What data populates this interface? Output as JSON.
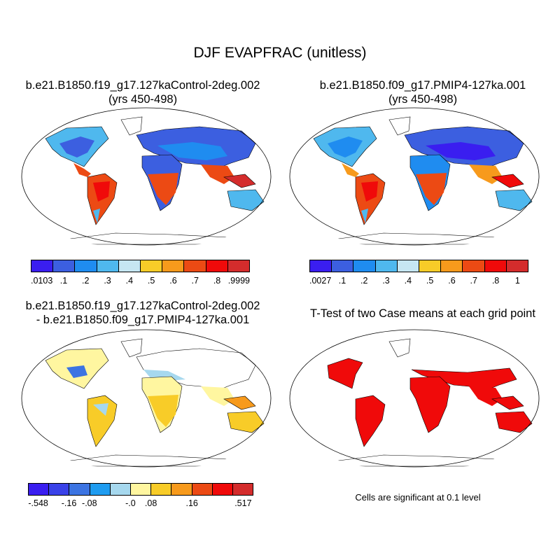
{
  "figure": {
    "title": "DJF EVAPFRAC (unitless)",
    "note": "Cells are significant at 0.1 level"
  },
  "panels": [
    {
      "id": "control",
      "title_line1": "b.e21.B1850.f19_g17.127kaControl-2deg.002",
      "title_line2": "(yrs 450-498)"
    },
    {
      "id": "pmip4",
      "title_line1": "b.e21.B1850.f09_g17.PMIP4-127ka.001",
      "title_line2": "(yrs 450-498)"
    },
    {
      "id": "difference",
      "title_line1": "b.e21.B1850.f19_g17.127kaControl-2deg.002",
      "title_line2": "- b.e21.B1850.f09_g17.PMIP4-127ka.001"
    },
    {
      "id": "ttest",
      "title_line1": "T-Test of two Case means at each grid point",
      "title_line2": ""
    }
  ],
  "colorbars": {
    "control": {
      "colors": [
        "#3a1ef0",
        "#3c5fe0",
        "#1f8cf0",
        "#4fb8ee",
        "#c6e6f2",
        "#f8cc28",
        "#f79a1c",
        "#ec4a14",
        "#f00a0a",
        "#d42c2c"
      ],
      "labels": [
        ".0103",
        ".1",
        ".2",
        ".3",
        ".4",
        ".5",
        ".6",
        ".7",
        ".8",
        ".9999"
      ]
    },
    "pmip4": {
      "colors": [
        "#3a1ef0",
        "#3c5fe0",
        "#1f8cf0",
        "#4fb8ee",
        "#c6e6f2",
        "#f8cc28",
        "#f79a1c",
        "#ec4a14",
        "#f00a0a",
        "#d42c2c"
      ],
      "labels": [
        ".0027",
        ".1",
        ".2",
        ".3",
        ".4",
        ".5",
        ".6",
        ".7",
        ".8",
        "1"
      ]
    },
    "difference": {
      "colors": [
        "#3a1ef0",
        "#3a42e8",
        "#3c74e2",
        "#1f9cf0",
        "#a6d8ee",
        "#fff6a0",
        "#f8cc28",
        "#f79a1c",
        "#ec4a14",
        "#f00a0a",
        "#d42c2c"
      ],
      "labels": [
        "-.548",
        "-.16",
        "-.08",
        "-.0",
        ".08",
        ".16",
        ".517"
      ]
    }
  },
  "legend_colors": {
    "significant": "#f00a0a",
    "land_outline": "#000000"
  }
}
